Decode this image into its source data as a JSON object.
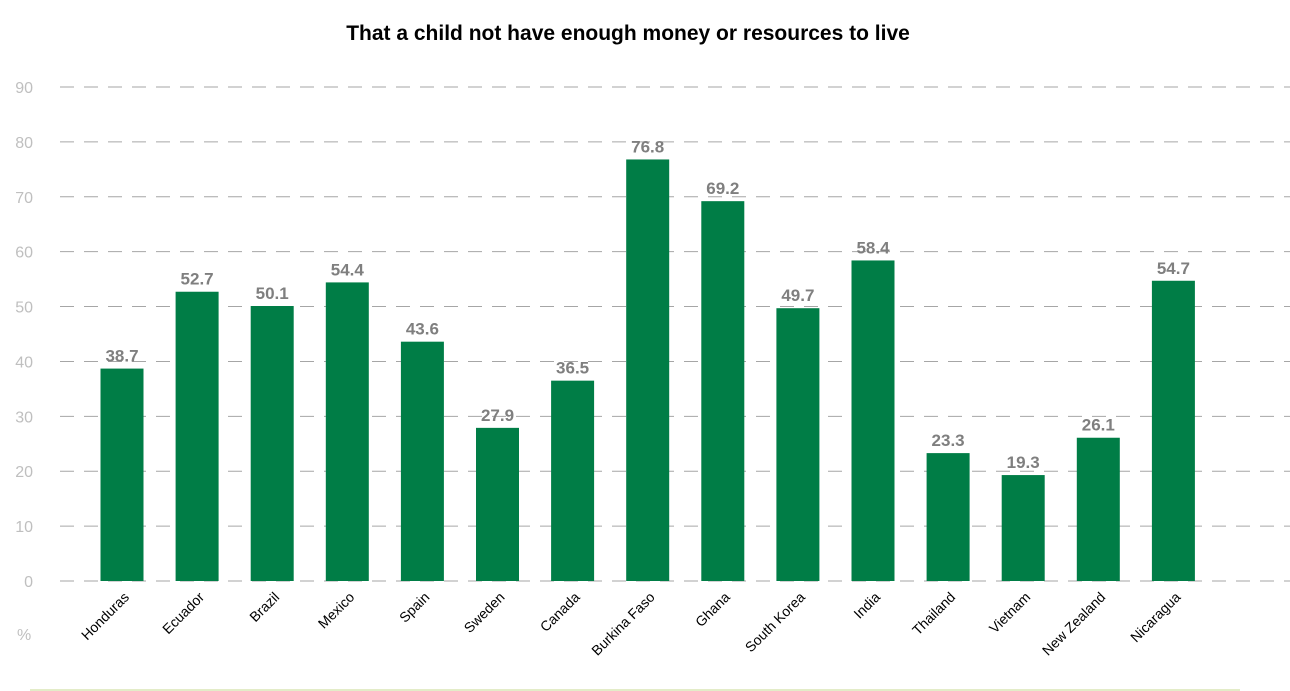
{
  "chart_data": {
    "type": "bar",
    "title": "That a child not have enough money or resources to live",
    "xlabel": "",
    "ylabel": "%",
    "ylim": [
      0,
      90
    ],
    "yticks": [
      0,
      10,
      20,
      30,
      40,
      50,
      60,
      70,
      80,
      90
    ],
    "grid": true,
    "gridline_style": "dashed",
    "categories": [
      "Honduras",
      "Ecuador",
      "Brazil",
      "Mexico",
      "Spain",
      "Sweden",
      "Canada",
      "Burkina Faso",
      "Ghana",
      "South Korea",
      "India",
      "Thailand",
      "Vietnam",
      "New Zealand",
      "Nicaragua"
    ],
    "values": [
      38.7,
      52.7,
      50.1,
      54.4,
      43.6,
      27.9,
      36.5,
      76.8,
      69.2,
      49.7,
      58.4,
      23.3,
      19.3,
      26.1,
      54.7
    ],
    "data_labels": [
      "38.7",
      "52.7",
      "50.1",
      "54.4",
      "43.6",
      "27.9",
      "36.5",
      "76.8",
      "69.2",
      "49.7",
      "58.4",
      "23.3",
      "19.3",
      "26.1",
      "54.7"
    ],
    "colors": {
      "bar": "#007d46",
      "data_label": "#7f7f7f",
      "axis_text": "#bfbfbf",
      "gridline": "#a6a6a6"
    }
  }
}
